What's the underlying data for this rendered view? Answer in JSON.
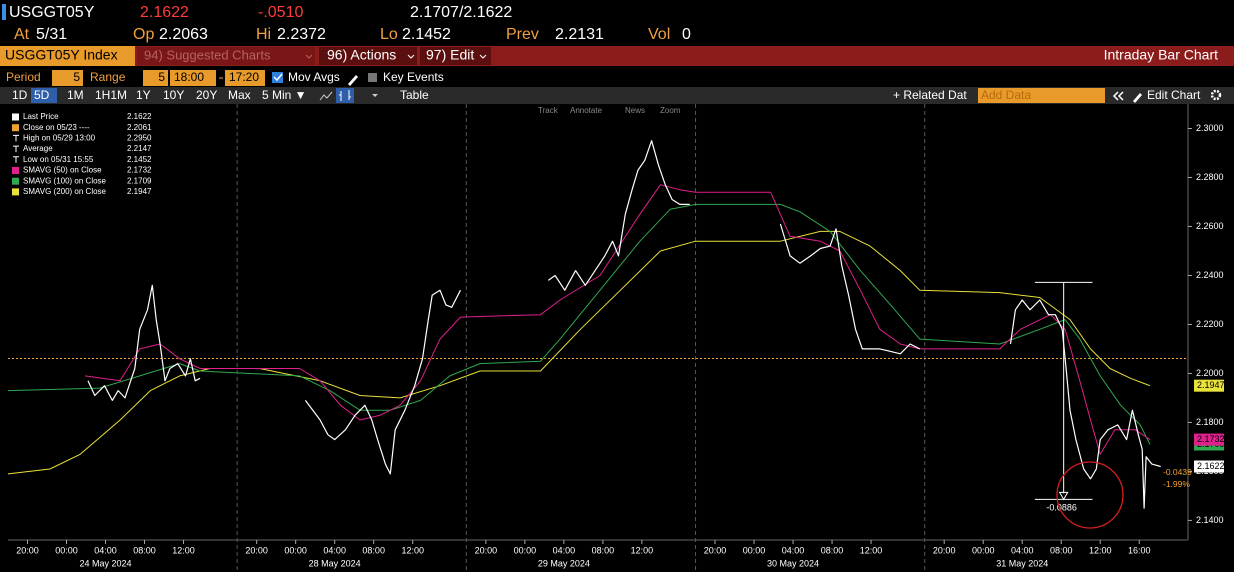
{
  "header": {
    "ticker": "USGGT05Y",
    "last": "2.1622",
    "change": "-.0510",
    "bidask": "2.1707/2.1622",
    "at_label": "At",
    "at": "5/31",
    "op_label": "Op",
    "op": "2.2063",
    "hi_label": "Hi",
    "hi": "2.2372",
    "lo_label": "Lo",
    "lo": "2.1452",
    "prev_label": "Prev",
    "prev": "2.2131",
    "vol_label": "Vol",
    "vol": "0"
  },
  "menu": {
    "security": "USGGT05Y Index",
    "suggested": "94) Suggested Charts",
    "actions": "96) Actions",
    "edit": "97) Edit",
    "chart_title": "Intraday Bar Chart"
  },
  "settings": {
    "period_label": "Period",
    "period": "5",
    "range_label": "Range",
    "range": "5",
    "from": "18:00",
    "to": "17:20",
    "mov_avgs": "Mov Avgs",
    "key_events": "Key Events"
  },
  "toolbar": {
    "buttons": [
      "1D",
      "5D",
      "1M",
      "1H1M",
      "1Y",
      "10Y",
      "20Y",
      "Max",
      "5 Min ▼"
    ],
    "active": "5D",
    "table": "Table",
    "related": "+ Related Dat",
    "add_data": "Add Data",
    "edit_chart": "Edit Chart"
  },
  "chart_tools": [
    "Track",
    "Annotate",
    "News",
    "Zoom"
  ],
  "chart_data": {
    "type": "line",
    "xlim": [
      0,
      121
    ],
    "ylim": [
      2.132,
      2.31
    ],
    "yticks": [
      {
        "value": 2.14,
        "label": "2.1400"
      },
      {
        "value": 2.16,
        "label": "2.1600"
      },
      {
        "value": 2.18,
        "label": "2.1800"
      },
      {
        "value": 2.2,
        "label": "2.2000"
      },
      {
        "value": 2.22,
        "label": "2.2200"
      },
      {
        "value": 2.24,
        "label": "2.2400"
      },
      {
        "value": 2.26,
        "label": "2.2600"
      },
      {
        "value": 2.28,
        "label": "2.2800"
      },
      {
        "value": 2.3,
        "label": "2.3000"
      }
    ],
    "xticks": [
      {
        "value": 2,
        "label": "20:00"
      },
      {
        "value": 6,
        "label": "00:00"
      },
      {
        "value": 10,
        "label": "04:00"
      },
      {
        "value": 14,
        "label": "08:00"
      },
      {
        "value": 18,
        "label": "12:00"
      },
      {
        "value": 25.5,
        "label": "20:00"
      },
      {
        "value": 29.5,
        "label": "00:00"
      },
      {
        "value": 33.5,
        "label": "04:00"
      },
      {
        "value": 37.5,
        "label": "08:00"
      },
      {
        "value": 41.5,
        "label": "12:00"
      },
      {
        "value": 49,
        "label": "20:00"
      },
      {
        "value": 53,
        "label": "00:00"
      },
      {
        "value": 57,
        "label": "04:00"
      },
      {
        "value": 61,
        "label": "08:00"
      },
      {
        "value": 65,
        "label": "12:00"
      },
      {
        "value": 72.5,
        "label": "20:00"
      },
      {
        "value": 76.5,
        "label": "00:00"
      },
      {
        "value": 80.5,
        "label": "04:00"
      },
      {
        "value": 84.5,
        "label": "08:00"
      },
      {
        "value": 88.5,
        "label": "12:00"
      },
      {
        "value": 96,
        "label": "20:00"
      },
      {
        "value": 100,
        "label": "00:00"
      },
      {
        "value": 104,
        "label": "04:00"
      },
      {
        "value": 108,
        "label": "08:00"
      },
      {
        "value": 112,
        "label": "12:00"
      },
      {
        "value": 116,
        "label": "16:00"
      }
    ],
    "day_labels": [
      "24 May 2024",
      "28 May 2024",
      "29 May 2024",
      "30 May 2024",
      "31 May 2024"
    ],
    "grid": false,
    "series": [
      {
        "name": "Last Price",
        "color": "#ffffff",
        "legend_value": "2.1622",
        "x": [
          8.2,
          8.9,
          9.9,
          10.7,
          11.3,
          12,
          13,
          13.5,
          14.3,
          14.8,
          15.2,
          15.6,
          16.1,
          16.6,
          17.4,
          18.2,
          18.7,
          19.2,
          19.7,
          null,
          30.5,
          32,
          32.8,
          33.5,
          34.6,
          35.6,
          36.6,
          37.3,
          37.9,
          38.7,
          39.2,
          39.7,
          40.7,
          41.7,
          42.5,
          43.1,
          43.5,
          44.3,
          44.9,
          45.5,
          46.4,
          null,
          55.4,
          56.1,
          57.1,
          58.2,
          59.2,
          60.2,
          61.2,
          62,
          62.6,
          63.3,
          64,
          64.6,
          65.3,
          66,
          66.7,
          67.4,
          68.1,
          68.9,
          69.9,
          null,
          79.2,
          80.2,
          81.2,
          82.3,
          83.3,
          84.3,
          84.9,
          85.5,
          86.2,
          86.9,
          87.6,
          88.4,
          89.4,
          90.5,
          91.5,
          92.5,
          93.5,
          null,
          102.8,
          103.3,
          104,
          104.8,
          105.8,
          106.7,
          107.4,
          108.1,
          108.5,
          108.9,
          109.5,
          110.3,
          111,
          111.6,
          112,
          112.8,
          113.8,
          114.7,
          115.3,
          115.9,
          116.3,
          116.5,
          116.7,
          117.3,
          118.2
        ],
        "values": [
          2.197,
          2.191,
          2.195,
          2.189,
          2.193,
          2.19,
          2.202,
          2.218,
          2.226,
          2.236,
          2.222,
          2.212,
          2.197,
          2.202,
          2.204,
          2.199,
          2.206,
          2.197,
          2.198,
          null,
          2.189,
          2.181,
          2.175,
          2.173,
          2.177,
          2.183,
          2.187,
          2.181,
          2.173,
          2.163,
          2.159,
          2.177,
          2.185,
          2.195,
          2.206,
          2.222,
          2.232,
          2.234,
          2.228,
          2.227,
          2.234,
          null,
          2.238,
          2.24,
          2.234,
          2.242,
          2.236,
          2.242,
          2.248,
          2.254,
          2.248,
          2.265,
          2.275,
          2.283,
          2.287,
          2.295,
          2.285,
          2.277,
          2.271,
          2.269,
          2.269,
          null,
          2.261,
          2.248,
          2.245,
          2.248,
          2.251,
          2.252,
          2.259,
          2.244,
          2.232,
          2.218,
          2.21,
          2.21,
          2.21,
          2.209,
          2.208,
          2.212,
          2.21,
          null,
          2.212,
          2.226,
          2.23,
          2.226,
          2.23,
          2.224,
          2.224,
          2.218,
          2.202,
          2.185,
          2.173,
          2.161,
          2.157,
          2.161,
          2.173,
          2.177,
          2.179,
          2.173,
          2.185,
          2.175,
          2.169,
          2.145,
          2.166,
          2.163,
          2.162
        ]
      },
      {
        "name": "SMAVG (50)  on Close",
        "color": "#e0208c",
        "legend_value": "2.1732",
        "x": [
          7.9,
          11.5,
          13.5,
          15.6,
          17.6,
          19.7,
          23.8,
          29.9,
          32,
          34.1,
          36.1,
          38.2,
          40.2,
          42.3,
          44.3,
          46.4,
          54.6,
          56.6,
          60.7,
          64.8,
          66.9,
          68.9,
          70.5,
          78.2,
          80.2,
          83.3,
          85.3,
          87.4,
          89.4,
          91.5,
          93.5,
          101.7,
          103.8,
          106.9,
          108.4,
          109.9,
          111,
          112,
          113.5,
          115.6,
          117.1
        ],
        "values": [
          2.199,
          2.197,
          2.21,
          2.212,
          2.206,
          2.202,
          2.202,
          2.202,
          2.197,
          2.187,
          2.181,
          2.183,
          2.187,
          2.197,
          2.214,
          2.223,
          2.224,
          2.23,
          2.24,
          2.265,
          2.277,
          2.275,
          2.274,
          2.274,
          2.256,
          2.254,
          2.25,
          2.234,
          2.218,
          2.212,
          2.21,
          2.21,
          2.218,
          2.224,
          2.218,
          2.197,
          2.181,
          2.167,
          2.177,
          2.177,
          2.173
        ]
      },
      {
        "name": "SMAVG (100)  on Close",
        "color": "#2fa84f",
        "legend_value": "2.1709",
        "x": [
          0,
          9.4,
          13.5,
          17.6,
          19.7,
          29.9,
          33,
          36.1,
          39.2,
          42.3,
          45.3,
          48.4,
          54.6,
          56.6,
          60.7,
          64.8,
          67.9,
          70.5,
          79.2,
          81.2,
          84.3,
          87.4,
          90.5,
          93.5,
          101.7,
          105.8,
          108.4,
          109.9,
          112,
          114.1,
          116.1,
          117.1
        ],
        "values": [
          2.193,
          2.194,
          2.199,
          2.204,
          2.201,
          2.199,
          2.193,
          2.185,
          2.185,
          2.189,
          2.199,
          2.204,
          2.205,
          2.214,
          2.234,
          2.254,
          2.267,
          2.269,
          2.269,
          2.266,
          2.258,
          2.242,
          2.228,
          2.214,
          2.212,
          2.218,
          2.222,
          2.214,
          2.199,
          2.187,
          2.179,
          2.171
        ]
      },
      {
        "name": "SMAVG (200)  on Close",
        "color": "#e8e23a",
        "legend_value": "2.1947",
        "x": [
          0,
          4.3,
          7.4,
          11.5,
          14.6,
          17.6,
          20.7,
          25.8,
          32,
          36.1,
          40.2,
          44.3,
          48.4,
          54.6,
          58.7,
          62.8,
          66.9,
          70.5,
          79.2,
          83.3,
          85.3,
          88.4,
          91.5,
          93.5,
          101.7,
          105.8,
          108.9,
          111,
          113,
          115.1,
          117.1
        ],
        "values": [
          2.159,
          2.161,
          2.167,
          2.181,
          2.193,
          2.199,
          2.202,
          2.202,
          2.197,
          2.191,
          2.19,
          2.195,
          2.201,
          2.201,
          2.218,
          2.234,
          2.25,
          2.254,
          2.254,
          2.258,
          2.258,
          2.252,
          2.242,
          2.234,
          2.233,
          2.231,
          2.222,
          2.21,
          2.202,
          2.198,
          2.195
        ]
      }
    ],
    "reference": [
      {
        "name": "Close on 05/23 ----",
        "legend_value": "2.2061",
        "value": 2.2061,
        "color": "#f0a030",
        "style": "dotted"
      },
      {
        "name": "High on 05/29 13:00",
        "legend_value": "2.2950",
        "color": "#ffffff"
      },
      {
        "name": "Average",
        "legend_value": "2.2147",
        "color": "#ffffff"
      },
      {
        "name": "Low on 05/31 15:55",
        "legend_value": "2.1452",
        "color": "#ffffff"
      }
    ],
    "measure": {
      "label": "-0.0886",
      "from": 2.2372,
      "to": 2.1486,
      "x": [
        105.3,
        111.2
      ]
    },
    "last_change": [
      "-0.0439",
      "-1.99%"
    ]
  }
}
